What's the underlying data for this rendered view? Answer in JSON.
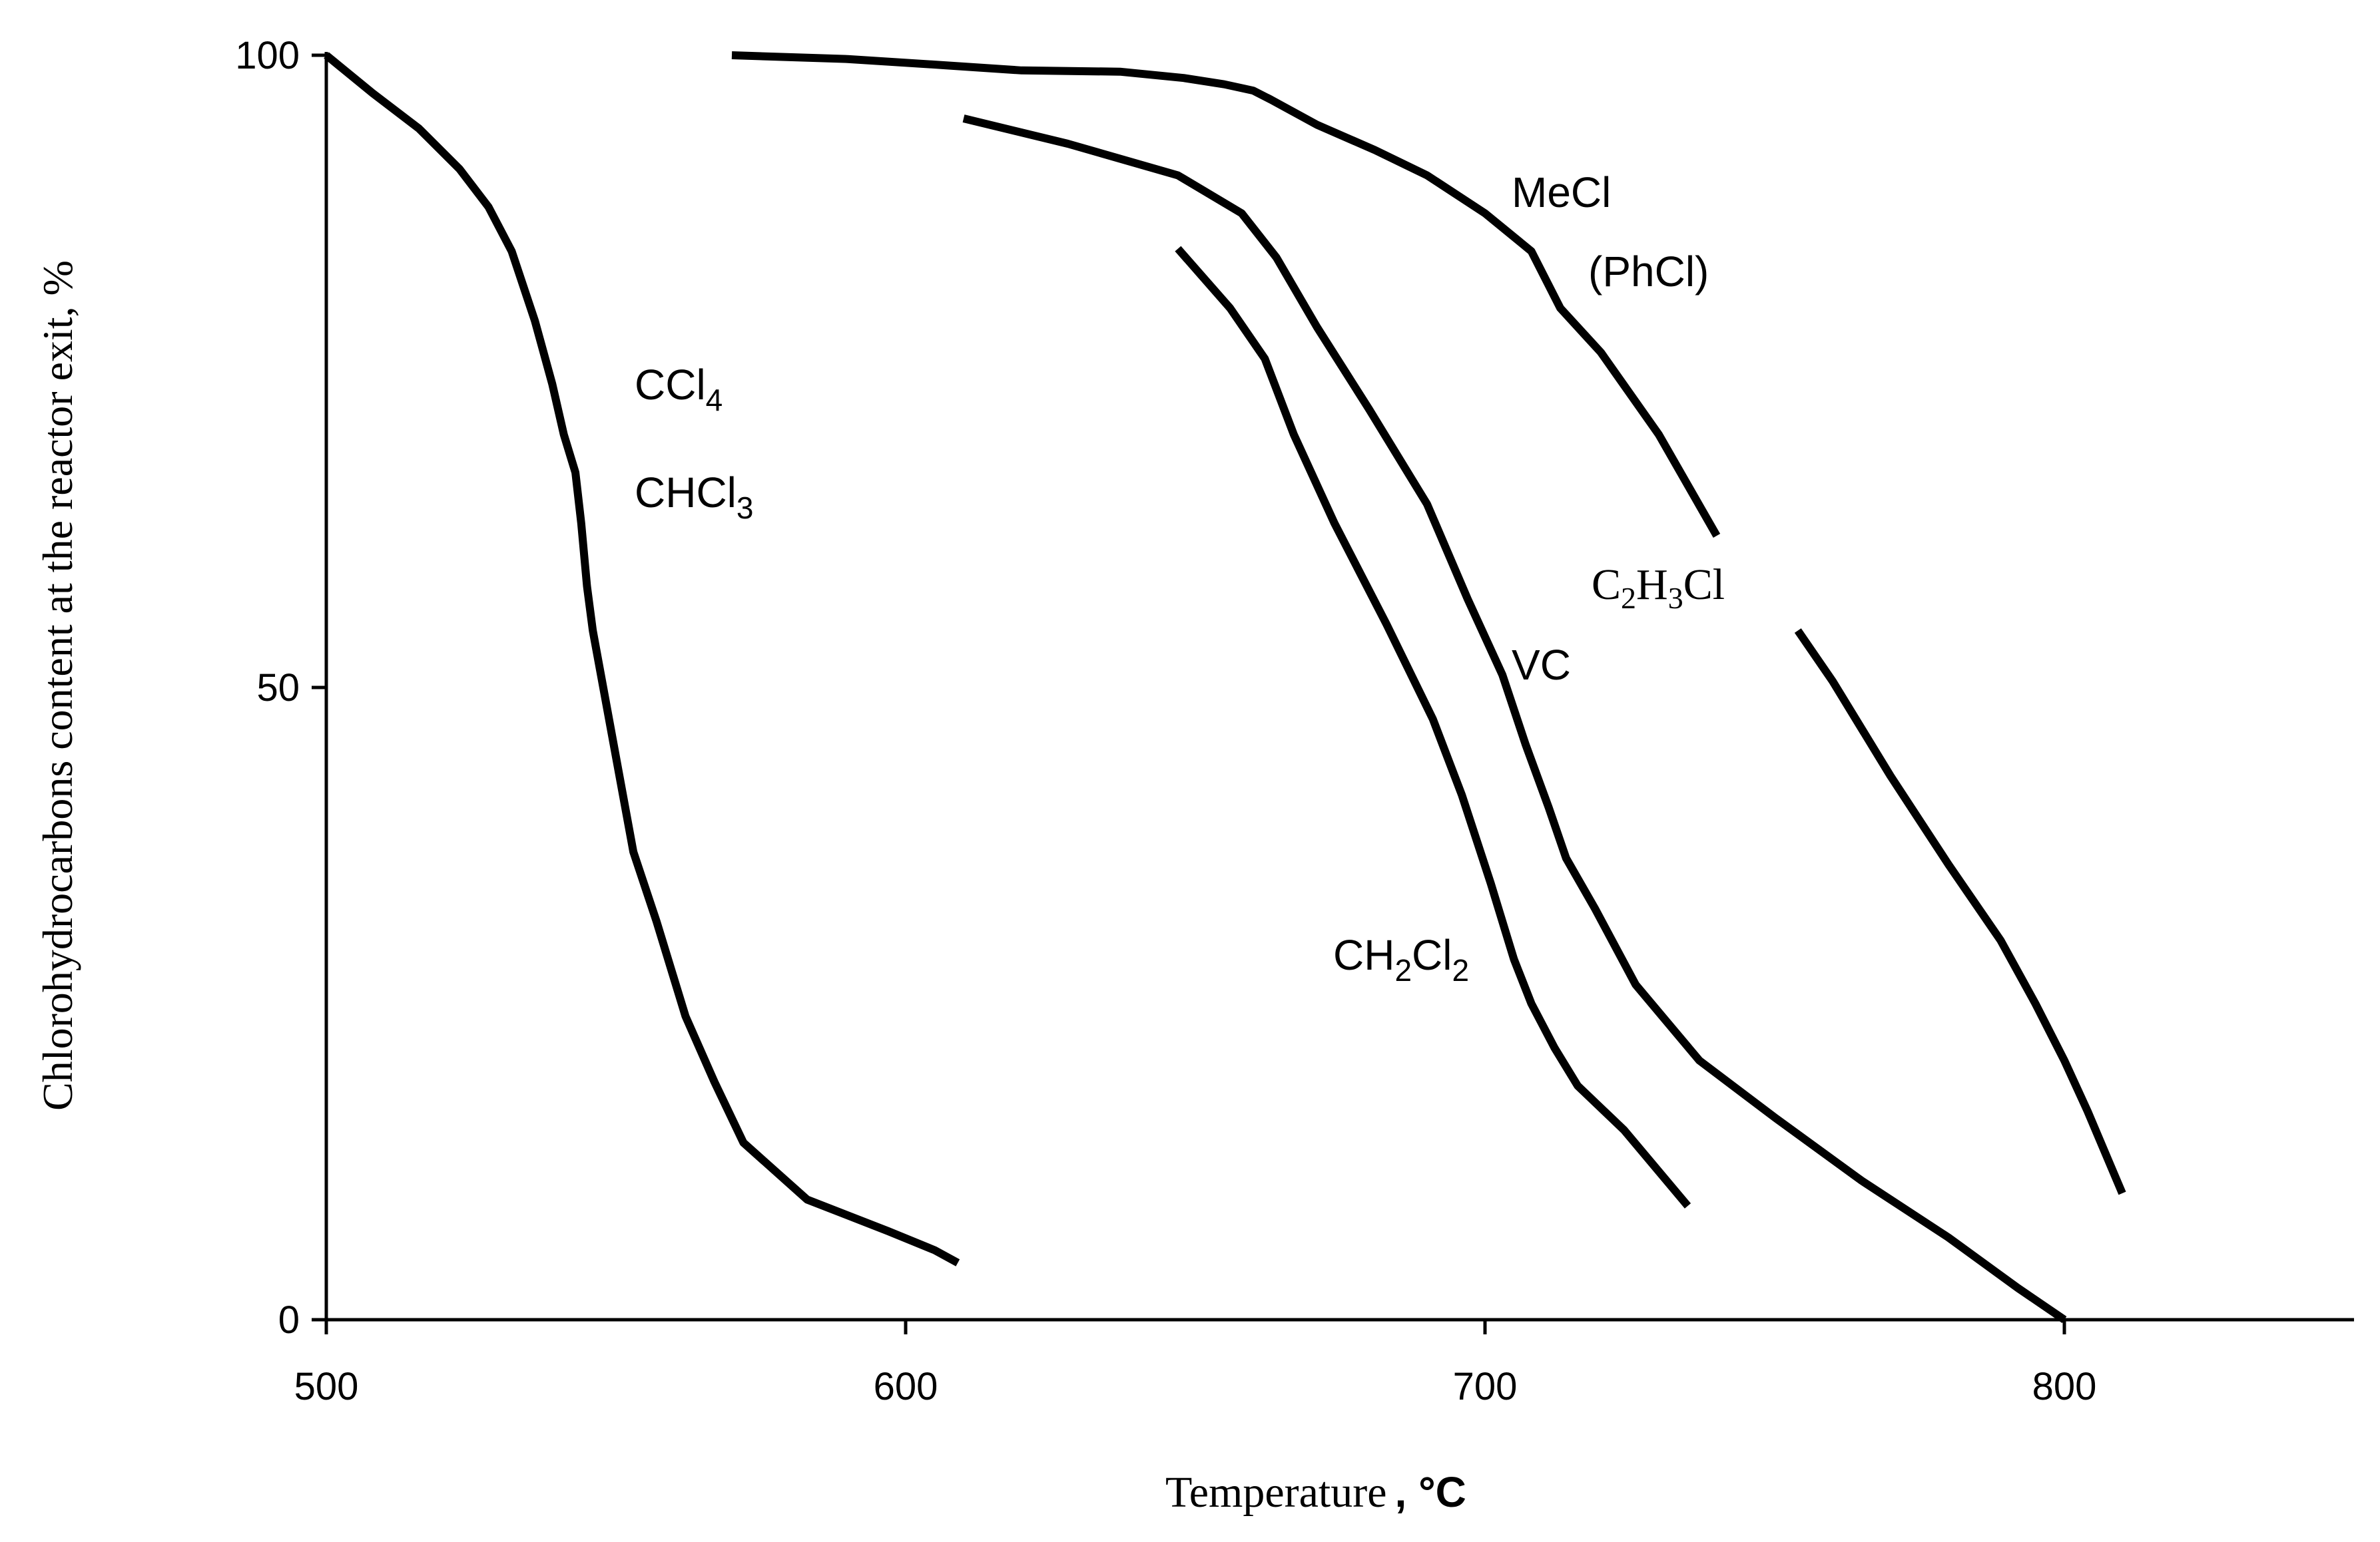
{
  "chart_data": {
    "type": "line",
    "title": "",
    "xlabel": {
      "main": "Temperature",
      "unit": ", °C"
    },
    "ylabel": "Chlorohydrocarbons content at the reactor exit, %",
    "xlim": [
      500,
      850
    ],
    "ylim": [
      0,
      100
    ],
    "x_ticks": [
      "500",
      "600",
      "700",
      "800"
    ],
    "y_ticks": [
      "0",
      "50",
      "100"
    ],
    "grid": false,
    "series": [
      {
        "name": "CCl4 / CHCl3",
        "labels": [
          {
            "base": "CCl",
            "sub": "4"
          },
          {
            "base": "CHCl",
            "sub": "3"
          }
        ],
        "x": [
          500,
          508,
          516,
          523,
          528,
          532,
          536,
          539,
          541,
          543,
          544,
          545,
          546,
          548,
          550,
          553,
          557,
          562,
          567,
          572,
          583,
          597,
          605,
          609
        ],
        "y": [
          100,
          97,
          94.2,
          91,
          88,
          84.5,
          79,
          74,
          70,
          67,
          63,
          58,
          54.5,
          49.5,
          44.5,
          37,
          31.5,
          24,
          18.8,
          14,
          9.5,
          7,
          5.5,
          4.5
        ]
      },
      {
        "name": "CH2Cl2",
        "labels": [
          {
            "base": "CH",
            "sub": "2",
            "base2": "Cl",
            "sub2": "2"
          }
        ],
        "x": [
          647,
          656,
          662,
          667,
          674,
          683,
          691,
          696,
          701,
          705,
          708,
          712,
          716,
          724,
          735
        ],
        "y": [
          84.7,
          80,
          76,
          70,
          63,
          55,
          47.5,
          41.5,
          34.5,
          28.5,
          25,
          21.5,
          18.5,
          15,
          9
        ]
      },
      {
        "name": "VC",
        "labels": [
          {
            "text": "VC"
          }
        ],
        "x": [
          610,
          628,
          647,
          658,
          664,
          671,
          680,
          690,
          697,
          703,
          707,
          711,
          714,
          719,
          726,
          737,
          750,
          765,
          780,
          792,
          800
        ],
        "y": [
          95,
          93,
          90.5,
          87.5,
          84,
          78.5,
          72,
          64.5,
          57,
          51,
          45.5,
          40.5,
          36.5,
          32.5,
          26.5,
          20.5,
          16,
          11,
          6.5,
          2.5,
          0
        ]
      },
      {
        "name": "MeCl (PhCl) / C2H3Cl",
        "labels": [
          {
            "text": "MeCl"
          },
          {
            "text": "(PhCl)"
          },
          {
            "base": "C",
            "sub": "2",
            "base2": "H",
            "sub2": "3",
            "base3": "Cl"
          }
        ],
        "segments": [
          {
            "x": [
              570,
              590,
              607,
              620,
              637,
              648,
              655,
              660,
              663,
              667,
              671,
              681,
              690,
              700,
              708,
              713,
              720,
              730,
              740
            ],
            "y": [
              100,
              99.7,
              99.2,
              98.8,
              98.7,
              98.2,
              97.7,
              97.2,
              96.5,
              95.5,
              94.5,
              92.5,
              90.5,
              87.5,
              84.5,
              80,
              76.5,
              70,
              62
            ]
          },
          {
            "x": [
              754,
              760,
              770,
              780,
              789,
              795,
              800,
              804,
              810
            ],
            "y": [
              54.5,
              50.5,
              43,
              36,
              30,
              25,
              20.5,
              16.5,
              10
            ]
          }
        ]
      }
    ]
  }
}
